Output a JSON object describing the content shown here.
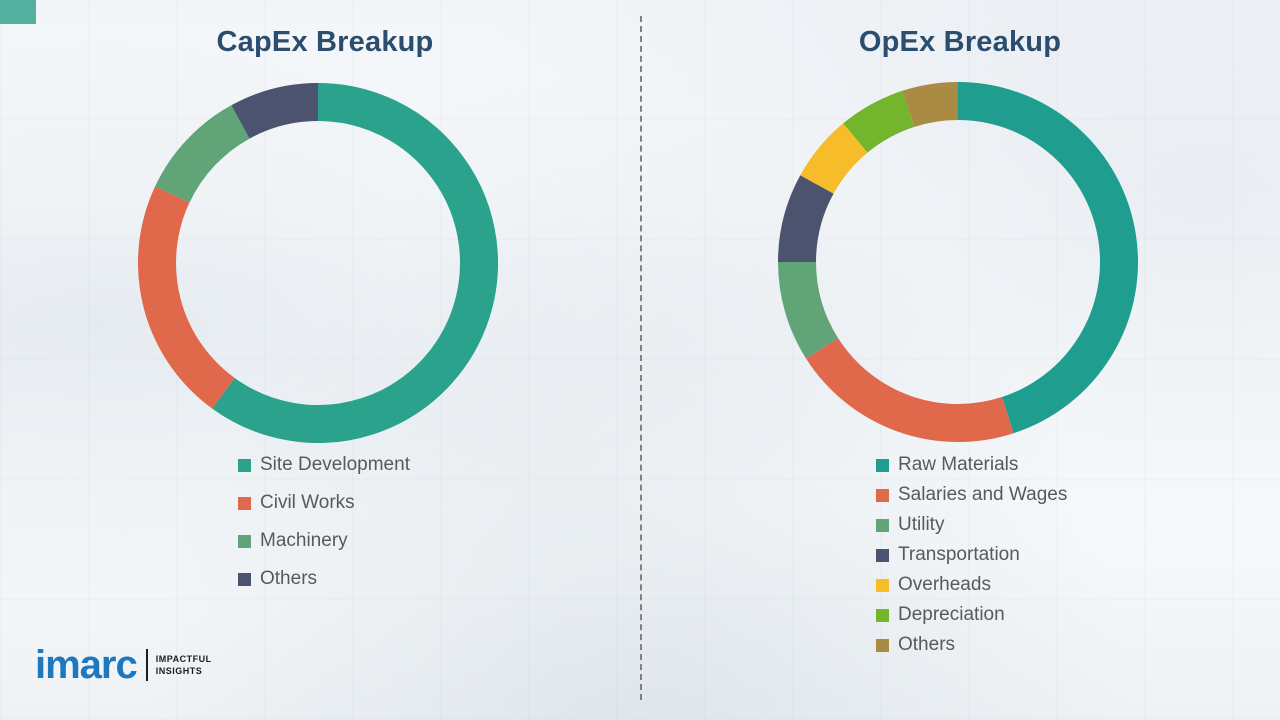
{
  "chart_data": [
    {
      "type": "pie",
      "subtype": "donut",
      "title": "CapEx Breakup",
      "labels": [
        "Site Development",
        "Civil Works",
        "Machinery",
        "Others"
      ],
      "values": [
        60,
        22,
        10,
        8
      ],
      "colors": [
        "#2ba28c",
        "#e0684b",
        "#61a477",
        "#4b536f"
      ],
      "start_angle_deg": 0,
      "direction": "clockwise",
      "legend_position": "bottom",
      "data_labels_shown": false
    },
    {
      "type": "pie",
      "subtype": "donut",
      "title": "OpEx Breakup",
      "labels": [
        "Raw Materials",
        "Salaries and Wages",
        "Utility",
        "Transportation",
        "Overheads",
        "Depreciation",
        "Others"
      ],
      "values": [
        45,
        21,
        9,
        8,
        6,
        6,
        5
      ],
      "colors": [
        "#1f9e8f",
        "#e0684b",
        "#61a477",
        "#4b536f",
        "#f6bc29",
        "#73b52d",
        "#a98b44"
      ],
      "start_angle_deg": 0,
      "direction": "clockwise",
      "legend_position": "bottom",
      "data_labels_shown": false
    }
  ],
  "branding": {
    "logo_text": "imarc",
    "tagline_line1": "IMPACTFUL",
    "tagline_line2": "INSIGHTS",
    "logo_color": "#1e78be"
  },
  "divider": {
    "type": "vertical-dashed",
    "color": "#6e6e6e"
  },
  "title_color": "#2b4d6e",
  "legend_text_color": "#595959"
}
